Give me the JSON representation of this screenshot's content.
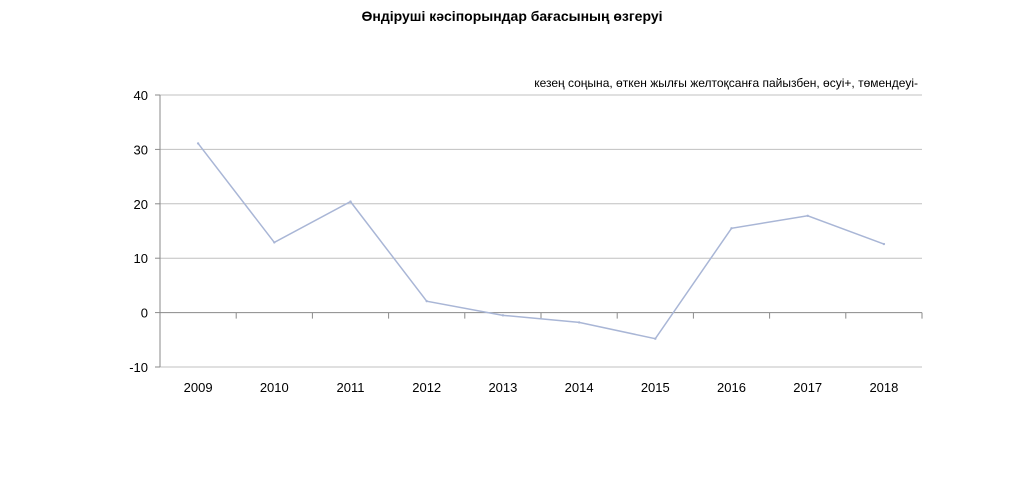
{
  "chart_data": {
    "type": "line",
    "title": "Өндіруші кәсіпорындар бағасының өзгеруі",
    "subtitle": "кезең соңына, өткен жылғы желтоқсанға пайызбен, өсуі+, төмендеуі-",
    "xlabel": "",
    "ylabel": "",
    "ylim": [
      -10,
      40
    ],
    "yticks": [
      "40",
      "30",
      "20",
      "10",
      "0",
      "-10"
    ],
    "categories": [
      "2009",
      "2010",
      "2011",
      "2012",
      "2013",
      "2014",
      "2015",
      "2016",
      "2017",
      "2018"
    ],
    "series": [
      {
        "values": [
          31.1,
          12.9,
          20.4,
          2.1,
          -0.5,
          -1.8,
          -4.8,
          15.5,
          17.8,
          12.6
        ]
      }
    ],
    "grid": true,
    "line_color": "#a9b6d6",
    "grid_color": "#c0c0c0"
  }
}
